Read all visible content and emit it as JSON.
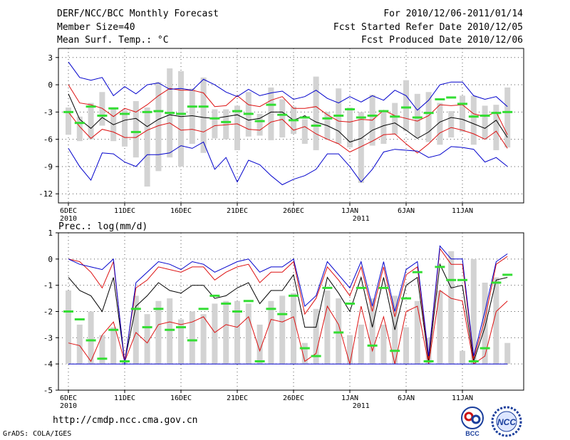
{
  "header": {
    "title": "DERF/NCC/BCC Monthly Forecast",
    "member_size": "Member Size=40",
    "variable": "Mean Surf. Temp.: °C",
    "period": "For 2010/12/06-2011/01/14",
    "started": "Fcst Started Refer Date 2010/12/05",
    "produced": "Fcst Produced Date 2010/12/06"
  },
  "footer": {
    "url": "http://cmdp.ncc.cma.gov.cn",
    "grads": "GrADS: COLA/IGES",
    "logo_bcc": "BCC",
    "logo_ncc": "NCC"
  },
  "colors": {
    "spread": "#d3d3d3",
    "median": "#33dd33",
    "mean": "#000000",
    "inner": "#dd1111",
    "outer": "#0000cc"
  },
  "chart_data": [
    {
      "type": "box-whisker",
      "title": "Mean Surf. Temp.: °C",
      "ylabel": "°C",
      "ylim": [
        -13,
        4
      ],
      "yticks": [
        3,
        0,
        -3,
        -6,
        -9,
        -12
      ],
      "x_tick_days": [
        1,
        6,
        11,
        16,
        21,
        26,
        31,
        36
      ],
      "x_tick_labels": [
        "6DEC",
        "11DEC",
        "16DEC",
        "21DEC",
        "26DEC",
        "1JAN",
        "6JAN",
        "11JAN"
      ],
      "year_labels": [
        {
          "day": 1,
          "label": "2010"
        },
        {
          "day": 27,
          "label": "2011"
        }
      ],
      "days": [
        1,
        2,
        3,
        4,
        5,
        6,
        7,
        8,
        9,
        10,
        11,
        12,
        13,
        14,
        15,
        16,
        17,
        18,
        19,
        20,
        21,
        22,
        23,
        24,
        25,
        26,
        27,
        28,
        29,
        30,
        31,
        32,
        33,
        34,
        35,
        36,
        37,
        38,
        39,
        40
      ],
      "bar_top": [
        -2.5,
        -3.5,
        -2.0,
        -0.8,
        -2.5,
        -2.8,
        -1.8,
        -2.5,
        0.3,
        1.8,
        1.5,
        -0.4,
        0.8,
        -2.7,
        -2.7,
        -2.3,
        -0.8,
        -3.2,
        -0.3,
        -1.6,
        -2.4,
        -3.8,
        0.9,
        -3.0,
        -0.4,
        -2.5,
        -3.0,
        -1.1,
        -3.0,
        -2.0,
        0.5,
        -1.0,
        -0.8,
        -2.0,
        -2.9,
        -1.2,
        -1.2,
        -2.3,
        -2.2,
        -0.3
      ],
      "bar_bottom": [
        -5.5,
        -6.2,
        -6.0,
        -4.5,
        -6.2,
        -6.8,
        -8.0,
        -11.2,
        -9.5,
        -8.0,
        -9.0,
        -6.5,
        -7.5,
        -5.9,
        -6.0,
        -7.2,
        -5.7,
        -5.6,
        -6.1,
        -5.8,
        -5.4,
        -6.5,
        -7.2,
        -6.0,
        -6.5,
        -6.9,
        -10.8,
        -6.7,
        -6.5,
        -5.5,
        -5.1,
        -5.8,
        -6.3,
        -6.6,
        -5.8,
        -5.2,
        -6.6,
        -6.0,
        -7.2,
        -6.9
      ],
      "series": [
        {
          "name": "ensemble median",
          "values": [
            -3.0,
            -4.2,
            -2.4,
            -3.4,
            -2.6,
            -3.2,
            -5.2,
            -3.0,
            -2.9,
            -3.1,
            -3.2,
            -2.4,
            -2.4,
            -3.7,
            -4.1,
            -2.9,
            -3.2,
            -4.0,
            -2.2,
            -3.3,
            -3.9,
            -3.6,
            -4.5,
            -3.7,
            -3.4,
            -2.7,
            -3.6,
            -3.4,
            -2.9,
            -3.5,
            -2.5,
            -3.6,
            -3.1,
            -1.6,
            -1.4,
            -2.1,
            -3.5,
            -3.4,
            -3.1,
            -3.0
          ]
        },
        {
          "name": "ensemble mean",
          "values": [
            -1.0,
            -3.8,
            -4.8,
            -3.6,
            -4.4,
            -3.9,
            -3.7,
            -4.6,
            -3.8,
            -3.3,
            -3.5,
            -3.4,
            -3.6,
            -3.7,
            -3.5,
            -3.3,
            -3.9,
            -3.7,
            -3.0,
            -3.0,
            -3.9,
            -3.4,
            -4.1,
            -4.5,
            -5.1,
            -6.3,
            -5.9,
            -5.0,
            -4.5,
            -4.2,
            -5.0,
            -5.9,
            -5.2,
            -4.1,
            -3.6,
            -3.8,
            -4.3,
            -4.8,
            -3.9,
            -5.8
          ]
        },
        {
          "name": "mean + 1 sd",
          "values": [
            0.0,
            -2.0,
            -2.2,
            -2.6,
            -3.5,
            -2.6,
            -3.0,
            -2.2,
            -1.2,
            -0.4,
            -0.6,
            -0.6,
            -0.9,
            -2.4,
            -2.3,
            -1.2,
            -2.2,
            -2.4,
            -1.7,
            -1.3,
            -2.6,
            -2.6,
            -2.4,
            -3.3,
            -4.0,
            -4.1,
            -3.8,
            -3.9,
            -2.8,
            -3.4,
            -3.7,
            -4.0,
            -3.4,
            -2.2,
            -2.3,
            -2.2,
            -3.2,
            -3.5,
            -3.0,
            -5.5
          ]
        },
        {
          "name": "mean - 1 sd",
          "values": [
            -3.0,
            -4.6,
            -5.9,
            -4.9,
            -5.2,
            -5.8,
            -5.8,
            -5.0,
            -4.5,
            -4.2,
            -5.0,
            -4.9,
            -5.2,
            -4.5,
            -4.4,
            -4.3,
            -4.9,
            -5.0,
            -4.1,
            -3.8,
            -5.0,
            -4.6,
            -5.4,
            -6.0,
            -6.5,
            -7.4,
            -6.8,
            -6.2,
            -5.5,
            -5.4,
            -6.5,
            -7.5,
            -6.5,
            -5.3,
            -4.7,
            -5.0,
            -5.4,
            -6.0,
            -5.1,
            -7.0
          ]
        },
        {
          "name": "max",
          "values": [
            2.5,
            0.8,
            0.5,
            0.8,
            -1.2,
            -0.2,
            -1.0,
            0.0,
            0.2,
            -0.5,
            -0.4,
            -0.6,
            0.6,
            0.0,
            -0.8,
            -1.3,
            -0.5,
            -1.2,
            -0.9,
            -0.7,
            -1.6,
            -1.3,
            -0.6,
            -1.5,
            -2.0,
            -1.3,
            -1.9,
            -1.2,
            -1.7,
            -0.6,
            -1.2,
            -2.8,
            -1.7,
            0.0,
            0.3,
            0.3,
            -1.2,
            -1.6,
            -1.3,
            -2.4
          ]
        },
        {
          "name": "min",
          "values": [
            -7.0,
            -9.0,
            -10.5,
            -7.5,
            -7.6,
            -8.5,
            -9.0,
            -7.7,
            -7.7,
            -7.5,
            -6.7,
            -7.0,
            -6.3,
            -9.3,
            -8.0,
            -10.7,
            -8.3,
            -8.8,
            -10.0,
            -11.0,
            -10.4,
            -10.0,
            -9.3,
            -7.6,
            -7.6,
            -9.0,
            -10.7,
            -9.3,
            -7.4,
            -7.1,
            -7.2,
            -7.3,
            -8.0,
            -7.7,
            -6.8,
            -6.9,
            -7.1,
            -8.5,
            -8.0,
            -9.0
          ]
        }
      ]
    },
    {
      "type": "box-whisker",
      "title": "Prec.: log(mm/d)",
      "ylabel": "log(mm/d)",
      "ylim": [
        -5,
        1
      ],
      "yticks": [
        1,
        0,
        -1,
        -2,
        -3,
        -4,
        -5
      ],
      "x_tick_days": [
        1,
        6,
        11,
        16,
        21,
        26,
        31,
        36
      ],
      "x_tick_labels": [
        "6DEC",
        "11DEC",
        "16DEC",
        "21DEC",
        "26DEC",
        "1JAN",
        "6JAN",
        "11JAN"
      ],
      "year_labels": [
        {
          "day": 1,
          "label": "2010"
        },
        {
          "day": 27,
          "label": "2011"
        }
      ],
      "days": [
        1,
        2,
        3,
        4,
        5,
        6,
        7,
        8,
        9,
        10,
        11,
        12,
        13,
        14,
        15,
        16,
        17,
        18,
        19,
        20,
        21,
        22,
        23,
        24,
        25,
        26,
        27,
        28,
        29,
        30,
        31,
        32,
        33,
        34,
        35,
        36,
        37,
        38,
        39,
        40
      ],
      "bar_top": [
        -1.2,
        -2.5,
        -2.0,
        -2.9,
        -2.6,
        -3.9,
        -1.4,
        -2.1,
        -1.6,
        -1.5,
        -2.3,
        -2.0,
        -2.1,
        -1.7,
        -1.6,
        -1.6,
        -1.7,
        -2.5,
        -1.6,
        -1.4,
        -1.3,
        -3.2,
        -1.9,
        -1.2,
        -1.5,
        -2.9,
        -2.5,
        -1.5,
        -2.5,
        -1.4,
        -2.6,
        -1.6,
        -3.0,
        -1.2,
        0.3,
        -3.5,
        0.0,
        -0.9,
        -0.7,
        -3.2
      ],
      "bar_bottom": [
        -4.0,
        -4.0,
        -4.0,
        -4.0,
        -4.0,
        -4.0,
        -4.0,
        -4.0,
        -4.0,
        -4.0,
        -4.0,
        -4.0,
        -4.0,
        -4.0,
        -4.0,
        -4.0,
        -4.0,
        -4.0,
        -4.0,
        -4.0,
        -4.0,
        -4.0,
        -4.0,
        -4.0,
        -4.0,
        -4.0,
        -4.0,
        -4.0,
        -4.0,
        -4.0,
        -4.0,
        -4.0,
        -4.0,
        -4.0,
        -4.0,
        -4.0,
        -4.0,
        -4.0,
        -4.0,
        -4.0
      ],
      "series": [
        {
          "name": "ensemble median",
          "values": [
            -2.0,
            -2.3,
            -3.1,
            -3.8,
            -2.7,
            -3.9,
            -1.9,
            -2.6,
            -1.9,
            -2.7,
            -2.6,
            -3.1,
            -1.9,
            -1.4,
            -1.7,
            -2.0,
            -1.6,
            -3.9,
            -1.9,
            -2.1,
            -1.4,
            -3.4,
            -3.7,
            -1.1,
            -2.8,
            -1.7,
            -1.1,
            -3.3,
            -1.1,
            -3.5,
            -1.5,
            -0.5,
            -3.9,
            -0.3,
            -0.8,
            -0.8,
            -3.9,
            -3.4,
            -0.9,
            -0.6
          ]
        },
        {
          "name": "ensemble mean",
          "values": [
            -0.7,
            -1.2,
            -1.4,
            -2.0,
            -0.7,
            -3.9,
            -1.8,
            -1.4,
            -0.9,
            -1.2,
            -1.3,
            -1.0,
            -1.0,
            -1.5,
            -1.4,
            -1.1,
            -0.9,
            -1.7,
            -1.2,
            -1.2,
            -0.6,
            -2.6,
            -2.6,
            -0.7,
            -1.3,
            -2.0,
            -0.7,
            -2.6,
            -0.7,
            -2.7,
            -1.0,
            -0.7,
            -3.9,
            -0.2,
            -1.1,
            -1.0,
            -3.9,
            -2.6,
            -0.8,
            -0.7
          ]
        },
        {
          "name": "mean + 1 sd",
          "values": [
            0.0,
            -0.1,
            -0.5,
            -1.1,
            -0.1,
            -3.9,
            -1.1,
            -0.8,
            -0.3,
            -0.4,
            -0.5,
            -0.3,
            -0.3,
            -0.8,
            -0.5,
            -0.3,
            -0.2,
            -0.9,
            -0.5,
            -0.5,
            -0.1,
            -2.1,
            -1.5,
            -0.3,
            -0.8,
            -1.4,
            -0.3,
            -2.0,
            -0.3,
            -2.2,
            -0.6,
            -0.3,
            -3.8,
            0.4,
            -0.2,
            -0.2,
            -3.8,
            -2.3,
            -0.2,
            0.1
          ]
        },
        {
          "name": "mean - 1 sd",
          "values": [
            -3.2,
            -3.3,
            -3.9,
            -2.9,
            -2.4,
            -3.9,
            -2.8,
            -3.2,
            -2.5,
            -2.4,
            -2.5,
            -2.4,
            -2.2,
            -2.8,
            -2.5,
            -2.6,
            -2.2,
            -3.5,
            -2.3,
            -2.4,
            -2.2,
            -3.9,
            -3.6,
            -1.8,
            -2.5,
            -4.0,
            -1.8,
            -3.5,
            -2.2,
            -4.0,
            -2.0,
            -1.8,
            -4.0,
            -1.2,
            -1.5,
            -1.6,
            -4.0,
            -3.7,
            -2.0,
            -1.6
          ]
        },
        {
          "name": "max",
          "values": [
            0.0,
            -0.2,
            -0.3,
            -0.4,
            0.0,
            -4.0,
            -0.9,
            -0.5,
            -0.1,
            -0.2,
            -0.4,
            -0.1,
            -0.2,
            -0.5,
            -0.3,
            -0.1,
            0.0,
            -0.5,
            -0.3,
            -0.3,
            0.0,
            -1.8,
            -1.4,
            -0.1,
            -0.6,
            -1.1,
            -0.1,
            -1.8,
            -0.1,
            -2.0,
            -0.4,
            -0.1,
            -3.7,
            0.5,
            0.0,
            0.0,
            -3.7,
            -2.0,
            -0.1,
            0.2
          ]
        },
        {
          "name": "min",
          "values": [
            -4.0,
            -4.0,
            -4.0,
            -4.0,
            -4.0,
            -4.0,
            -4.0,
            -4.0,
            -4.0,
            -4.0,
            -4.0,
            -4.0,
            -4.0,
            -4.0,
            -4.0,
            -4.0,
            -4.0,
            -4.0,
            -4.0,
            -4.0,
            -4.0,
            -4.0,
            -4.0,
            -4.0,
            -4.0,
            -4.0,
            -4.0,
            -4.0,
            -4.0,
            -4.0,
            -4.0,
            -4.0,
            -4.0,
            -4.0,
            -4.0,
            -4.0,
            -4.0,
            -4.0,
            -4.0,
            -4.0
          ]
        }
      ]
    }
  ]
}
